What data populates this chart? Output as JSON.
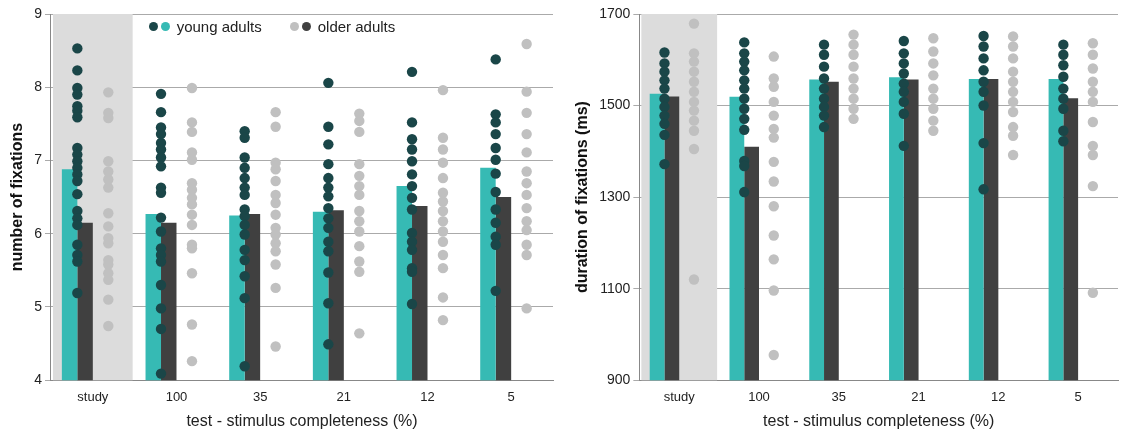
{
  "chart_data": [
    {
      "type": "bar",
      "xlabel": "test - stimulus completeness (%)",
      "ylabel": "number of fixations",
      "categories": [
        "study",
        "100",
        "35",
        "21",
        "12",
        "5"
      ],
      "ylim": [
        4,
        9
      ],
      "yticks": [
        4,
        5,
        6,
        7,
        8,
        9
      ],
      "grid": "y",
      "legend": "top left",
      "bands": [
        {
          "axis": "x",
          "from": "study",
          "to": "study",
          "color": "#dcdcdc"
        }
      ],
      "series": [
        {
          "name": "young adults",
          "color": "#36bab4",
          "values": [
            6.88,
            6.27,
            6.25,
            6.3,
            6.65,
            6.9
          ]
        },
        {
          "name": "older adults",
          "color": "#404040",
          "values": [
            6.15,
            6.15,
            6.27,
            6.32,
            6.38,
            6.5
          ]
        },
        {
          "type": "scatter",
          "color": "#1a4648",
          "x": [
            "study",
            "study",
            "study",
            "study",
            "study",
            "study",
            "study",
            "study",
            "study",
            "study",
            "study",
            "study",
            "study",
            "study",
            "study",
            "study",
            "study",
            "study",
            "study",
            "study",
            "study",
            "100",
            "100",
            "100",
            "100",
            "100",
            "100",
            "100",
            "100",
            "100",
            "100",
            "100",
            "100",
            "100",
            "100",
            "100",
            "100",
            "100",
            "100",
            "100",
            "35",
            "35",
            "35",
            "35",
            "35",
            "35",
            "35",
            "35",
            "35",
            "35",
            "35",
            "35",
            "35",
            "35",
            "35",
            "35",
            "21",
            "21",
            "21",
            "21",
            "21",
            "21",
            "21",
            "21",
            "21",
            "21",
            "21",
            "21",
            "21",
            "21",
            "21",
            "12",
            "12",
            "12",
            "12",
            "12",
            "12",
            "12",
            "12",
            "12",
            "12",
            "12",
            "12",
            "12",
            "12",
            "12",
            "5",
            "5",
            "5",
            "5",
            "5",
            "5",
            "5",
            "5",
            "5",
            "5",
            "5",
            "5",
            "5"
          ],
          "values": [
            8.53,
            8.23,
            7.99,
            7.9,
            7.74,
            7.68,
            7.59,
            7.17,
            7.08,
            6.99,
            6.9,
            6.81,
            6.72,
            6.54,
            6.31,
            6.21,
            6.12,
            5.85,
            5.71,
            5.62,
            5.19,
            7.91,
            7.66,
            7.45,
            7.36,
            7.24,
            7.15,
            7.04,
            6.92,
            6.63,
            6.56,
            6.22,
            6.03,
            5.8,
            5.71,
            5.62,
            5.3,
            4.98,
            4.7,
            4.09,
            7.4,
            7.31,
            7.04,
            6.9,
            6.76,
            6.63,
            6.53,
            6.33,
            6.24,
            6.12,
            5.99,
            5.78,
            5.64,
            5.42,
            5.12,
            4.19,
            8.06,
            7.46,
            7.22,
            6.95,
            6.76,
            6.63,
            6.51,
            6.35,
            6.21,
            6.08,
            5.89,
            5.76,
            5.47,
            5.05,
            4.49,
            8.21,
            7.52,
            7.29,
            7.15,
            6.99,
            6.81,
            6.65,
            6.49,
            6.33,
            6.01,
            5.89,
            5.78,
            5.53,
            5.48,
            5.04,
            8.38,
            7.63,
            7.52,
            7.36,
            7.17,
            7.01,
            6.82,
            6.57,
            6.33,
            6.15,
            5.96,
            5.85,
            5.22
          ]
        },
        {
          "type": "scatter",
          "color": "#c0c0c0",
          "x": [
            "study",
            "study",
            "study",
            "study",
            "study",
            "study",
            "study",
            "study",
            "study",
            "study",
            "study",
            "study",
            "study",
            "study",
            "study",
            "study",
            "study",
            "100",
            "100",
            "100",
            "100",
            "100",
            "100",
            "100",
            "100",
            "100",
            "100",
            "100",
            "100",
            "100",
            "100",
            "100",
            "100",
            "35",
            "35",
            "35",
            "35",
            "35",
            "35",
            "35",
            "35",
            "35",
            "35",
            "35",
            "35",
            "35",
            "35",
            "35",
            "21",
            "21",
            "21",
            "21",
            "21",
            "21",
            "21",
            "21",
            "21",
            "21",
            "21",
            "21",
            "21",
            "21",
            "12",
            "12",
            "12",
            "12",
            "12",
            "12",
            "12",
            "12",
            "12",
            "12",
            "12",
            "12",
            "12",
            "12",
            "12",
            "5",
            "5",
            "5",
            "5",
            "5",
            "5",
            "5",
            "5",
            "5",
            "5",
            "5",
            "5",
            "5",
            "5"
          ],
          "values": [
            7.93,
            7.65,
            7.58,
            6.99,
            6.85,
            6.74,
            6.63,
            6.28,
            6.1,
            5.94,
            5.87,
            5.64,
            5.58,
            5.46,
            5.37,
            5.1,
            4.74,
            7.99,
            7.52,
            7.39,
            7.11,
            7.01,
            6.69,
            6.6,
            6.49,
            6.4,
            6.26,
            6.12,
            5.85,
            5.8,
            5.46,
            4.76,
            4.26,
            7.66,
            7.46,
            6.97,
            6.88,
            6.72,
            6.53,
            6.42,
            6.26,
            6.08,
            5.99,
            5.87,
            5.76,
            5.58,
            5.26,
            4.46,
            7.64,
            7.54,
            7.39,
            6.95,
            6.79,
            6.65,
            6.53,
            6.31,
            6.17,
            6.03,
            5.83,
            5.62,
            5.48,
            4.64,
            7.96,
            7.31,
            7.15,
            6.97,
            6.76,
            6.56,
            6.44,
            6.31,
            6.17,
            6.03,
            5.89,
            5.71,
            5.53,
            5.13,
            4.82,
            8.59,
            7.94,
            7.65,
            7.36,
            7.11,
            6.85,
            6.69,
            6.53,
            6.35,
            6.17,
            6.05,
            5.85,
            5.71,
            4.98
          ]
        }
      ]
    },
    {
      "type": "bar",
      "xlabel": "test - stimulus completeness (%)",
      "ylabel": "duration of fixations (ms)",
      "categories": [
        "study",
        "100",
        "35",
        "21",
        "12",
        "5"
      ],
      "ylim": [
        900,
        1700
      ],
      "yticks": [
        900,
        1100,
        1300,
        1500,
        1700
      ],
      "grid": "y",
      "bands": [
        {
          "axis": "x",
          "from": "study",
          "to": "study",
          "color": "#dcdcdc"
        }
      ],
      "series": [
        {
          "color": "#36bab4",
          "values": [
            1526,
            1519,
            1557,
            1562,
            1558,
            1558
          ]
        },
        {
          "color": "#404040",
          "values": [
            1520,
            1410,
            1552,
            1557,
            1558,
            1516
          ]
        },
        {
          "type": "scatter",
          "color": "#1a4648",
          "x": [
            "study",
            "study",
            "study",
            "study",
            "study",
            "study",
            "study",
            "study",
            "study",
            "study",
            "study",
            "100",
            "100",
            "100",
            "100",
            "100",
            "100",
            "100",
            "100",
            "100",
            "100",
            "100",
            "100",
            "100",
            "35",
            "35",
            "35",
            "35",
            "35",
            "35",
            "35",
            "35",
            "35",
            "21",
            "21",
            "21",
            "21",
            "21",
            "21",
            "21",
            "21",
            "21",
            "12",
            "12",
            "12",
            "12",
            "12",
            "12",
            "12",
            "12",
            "12",
            "5",
            "5",
            "5",
            "5",
            "5",
            "5",
            "5",
            "5",
            "5"
          ],
          "values": [
            1616,
            1592,
            1574,
            1555,
            1537,
            1515,
            1497,
            1478,
            1460,
            1436,
            1372,
            1638,
            1614,
            1596,
            1577,
            1555,
            1537,
            1515,
            1493,
            1471,
            1447,
            1379,
            1368,
            1311,
            1633,
            1611,
            1585,
            1559,
            1537,
            1515,
            1497,
            1478,
            1453,
            1641,
            1614,
            1592,
            1570,
            1548,
            1530,
            1508,
            1482,
            1412,
            1652,
            1629,
            1603,
            1577,
            1552,
            1530,
            1500,
            1418,
            1317,
            1633,
            1611,
            1588,
            1563,
            1537,
            1515,
            1493,
            1445,
            1422
          ]
        },
        {
          "type": "scatter",
          "color": "#c0c0c0",
          "x": [
            "study",
            "study",
            "study",
            "study",
            "study",
            "study",
            "study",
            "study",
            "study",
            "study",
            "study",
            "study",
            "100",
            "100",
            "100",
            "100",
            "100",
            "100",
            "100",
            "100",
            "100",
            "100",
            "100",
            "100",
            "100",
            "100",
            "35",
            "35",
            "35",
            "35",
            "35",
            "35",
            "35",
            "35",
            "35",
            "21",
            "21",
            "21",
            "21",
            "21",
            "21",
            "21",
            "21",
            "21",
            "12",
            "12",
            "12",
            "12",
            "12",
            "12",
            "12",
            "12",
            "12",
            "12",
            "12",
            "5",
            "5",
            "5",
            "5",
            "5",
            "5",
            "5",
            "5",
            "5",
            "5",
            "5"
          ],
          "values": [
            1679,
            1614,
            1596,
            1574,
            1552,
            1530,
            1508,
            1489,
            1467,
            1445,
            1405,
            1120,
            1607,
            1559,
            1541,
            1508,
            1478,
            1449,
            1430,
            1377,
            1334,
            1280,
            1216,
            1164,
            1096,
            955,
            1655,
            1633,
            1611,
            1585,
            1559,
            1537,
            1515,
            1493,
            1471,
            1647,
            1618,
            1592,
            1566,
            1537,
            1515,
            1493,
            1467,
            1445,
            1651,
            1629,
            1603,
            1574,
            1552,
            1530,
            1508,
            1486,
            1453,
            1434,
            1392,
            1636,
            1611,
            1581,
            1552,
            1530,
            1508,
            1464,
            1412,
            1392,
            1324,
            1091
          ]
        }
      ]
    }
  ]
}
